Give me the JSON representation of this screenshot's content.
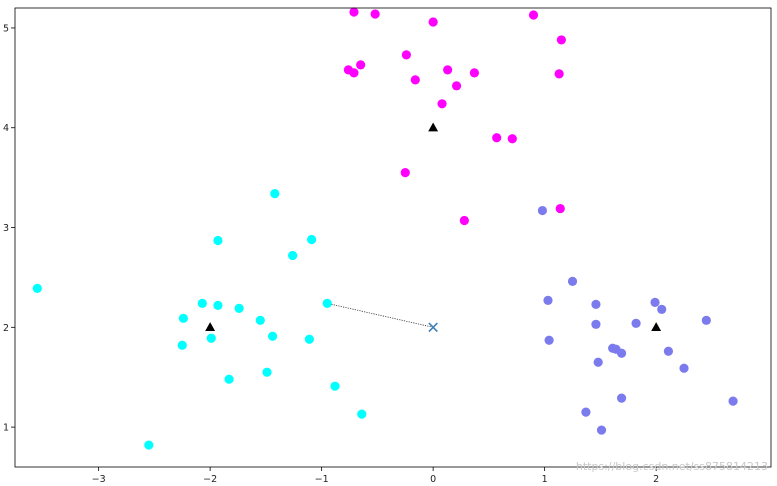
{
  "chart_data": {
    "type": "scatter",
    "title": "",
    "xlabel": "",
    "ylabel": "",
    "xlim": [
      -3.75,
      3.03
    ],
    "ylim": [
      0.6,
      5.2
    ],
    "x_ticks": [
      {
        "value": -3,
        "label": "−3"
      },
      {
        "value": -2,
        "label": "−2"
      },
      {
        "value": -1,
        "label": "−1"
      },
      {
        "value": 0,
        "label": "0"
      },
      {
        "value": 1,
        "label": "1"
      },
      {
        "value": 2,
        "label": "2"
      }
    ],
    "y_ticks": [
      {
        "value": 1,
        "label": "1"
      },
      {
        "value": 2,
        "label": "2"
      },
      {
        "value": 3,
        "label": "3"
      },
      {
        "value": 4,
        "label": "4"
      },
      {
        "value": 5,
        "label": "5"
      }
    ],
    "grid": false,
    "legend": "none",
    "series": [
      {
        "color": "#00ffff",
        "marker": "circle",
        "points": [
          [
            -3.55,
            2.39
          ],
          [
            -2.55,
            0.82
          ],
          [
            -2.24,
            2.09
          ],
          [
            -2.25,
            1.82
          ],
          [
            -2.07,
            2.24
          ],
          [
            -1.99,
            1.89
          ],
          [
            -1.93,
            2.22
          ],
          [
            -1.93,
            2.87
          ],
          [
            -1.83,
            1.48
          ],
          [
            -1.74,
            2.19
          ],
          [
            -1.55,
            2.07
          ],
          [
            -1.49,
            1.55
          ],
          [
            -1.44,
            1.91
          ],
          [
            -1.42,
            3.34
          ],
          [
            -1.26,
            2.72
          ],
          [
            -1.11,
            1.88
          ],
          [
            -1.09,
            2.88
          ],
          [
            -0.95,
            2.24
          ],
          [
            -0.88,
            1.41
          ],
          [
            -0.64,
            1.13
          ]
        ]
      },
      {
        "color": "#ff00ff",
        "marker": "circle",
        "points": [
          [
            -0.71,
            5.16
          ],
          [
            -0.52,
            5.14
          ],
          [
            -0.76,
            4.58
          ],
          [
            -0.71,
            4.55
          ],
          [
            -0.65,
            4.63
          ],
          [
            -0.24,
            4.73
          ],
          [
            -0.16,
            4.48
          ],
          [
            0.0,
            5.06
          ],
          [
            0.08,
            4.24
          ],
          [
            0.13,
            4.58
          ],
          [
            0.21,
            4.42
          ],
          [
            0.37,
            4.55
          ],
          [
            -0.25,
            3.55
          ],
          [
            0.28,
            3.07
          ],
          [
            0.57,
            3.9
          ],
          [
            0.71,
            3.89
          ],
          [
            0.9,
            5.13
          ],
          [
            1.15,
            4.88
          ],
          [
            1.13,
            4.54
          ],
          [
            1.14,
            3.19
          ]
        ]
      },
      {
        "color": "#7b7bed",
        "marker": "circle",
        "points": [
          [
            0.98,
            3.17
          ],
          [
            1.03,
            2.27
          ],
          [
            1.04,
            1.87
          ],
          [
            1.25,
            2.46
          ],
          [
            1.37,
            1.15
          ],
          [
            1.46,
            2.23
          ],
          [
            1.46,
            2.03
          ],
          [
            1.48,
            1.65
          ],
          [
            1.51,
            0.97
          ],
          [
            1.61,
            1.79
          ],
          [
            1.64,
            1.78
          ],
          [
            1.69,
            1.74
          ],
          [
            1.69,
            1.29
          ],
          [
            1.82,
            2.04
          ],
          [
            1.99,
            2.25
          ],
          [
            2.05,
            2.18
          ],
          [
            2.11,
            1.76
          ],
          [
            2.25,
            1.59
          ],
          [
            2.45,
            2.07
          ],
          [
            2.69,
            1.26
          ]
        ]
      }
    ],
    "centers": {
      "color": "#000000",
      "marker": "triangle",
      "points": [
        [
          -2,
          2
        ],
        [
          0,
          4
        ],
        [
          2,
          2
        ]
      ]
    },
    "query_point": {
      "color": "#3d7fb8",
      "marker": "x",
      "x": 0,
      "y": 2
    },
    "nearest_link": {
      "color": "#333333",
      "style": "dotted",
      "from": [
        0,
        2
      ],
      "to": [
        -0.95,
        2.24
      ]
    }
  },
  "watermark": {
    "text": "https://blog.csdn.net/ss875814213",
    "color": "#c8c8c8"
  }
}
